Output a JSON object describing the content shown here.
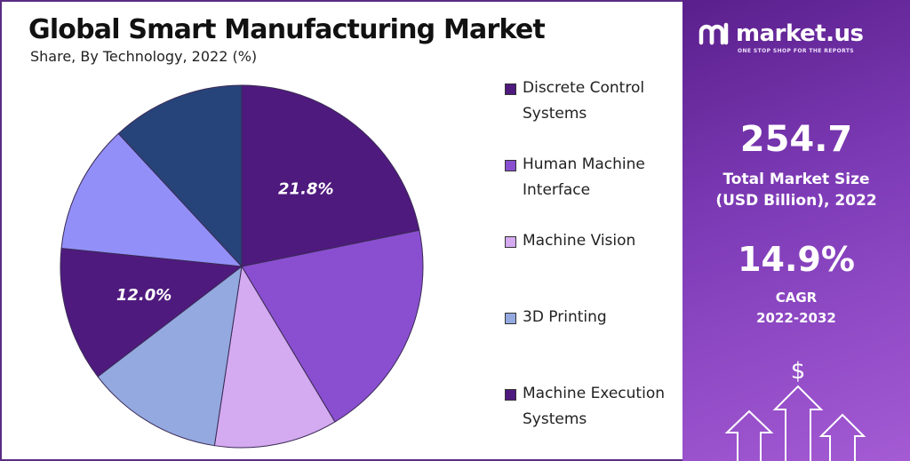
{
  "header": {
    "title": "Global Smart Manufacturing Market",
    "subtitle": "Share, By Technology, 2022 (%)"
  },
  "chart_data": {
    "type": "pie",
    "title": "Global Smart Manufacturing Market",
    "subtitle": "Share, By Technology, 2022 (%)",
    "legend_position": "right",
    "slices": [
      {
        "name": "Discrete Control Systems",
        "value": 21.8,
        "color": "#4f1a7e",
        "label": "21.8%"
      },
      {
        "name": "Human Machine Interface",
        "value": 19.6,
        "color": "#8a4fd0",
        "label": ""
      },
      {
        "name": "Machine Vision",
        "value": 11.0,
        "color": "#d4aaf0",
        "label": ""
      },
      {
        "name": "3D Printing",
        "value": 12.2,
        "color": "#93a9e0",
        "label": ""
      },
      {
        "name": "Machine Execution Systems",
        "value": 12.0,
        "color": "#4f1a7e",
        "label": "12.0%"
      },
      {
        "name": "",
        "value": 11.5,
        "color": "#9290f8",
        "label": ""
      },
      {
        "name": "",
        "value": 11.9,
        "color": "#27447a",
        "label": ""
      }
    ],
    "legend": [
      {
        "label": "Discrete Control Systems",
        "color": "#4f1a7e"
      },
      {
        "label": "Human Machine Interface",
        "color": "#8a4fd0"
      },
      {
        "label": "Machine Vision",
        "color": "#d4aaf0"
      },
      {
        "label": "3D Printing",
        "color": "#93a9e0"
      },
      {
        "label": "Machine Execution Systems",
        "color": "#4f1a7e"
      }
    ]
  },
  "panel": {
    "brand_name": "market.us",
    "brand_tagline": "ONE STOP SHOP FOR THE REPORTS",
    "market_size_value": "254.7",
    "market_size_label_line1": "Total Market Size",
    "market_size_label_line2": "(USD Billion), 2022",
    "cagr_value": "14.9%",
    "cagr_label": "CAGR",
    "cagr_period": "2022-2032",
    "dollar_symbol": "$"
  }
}
